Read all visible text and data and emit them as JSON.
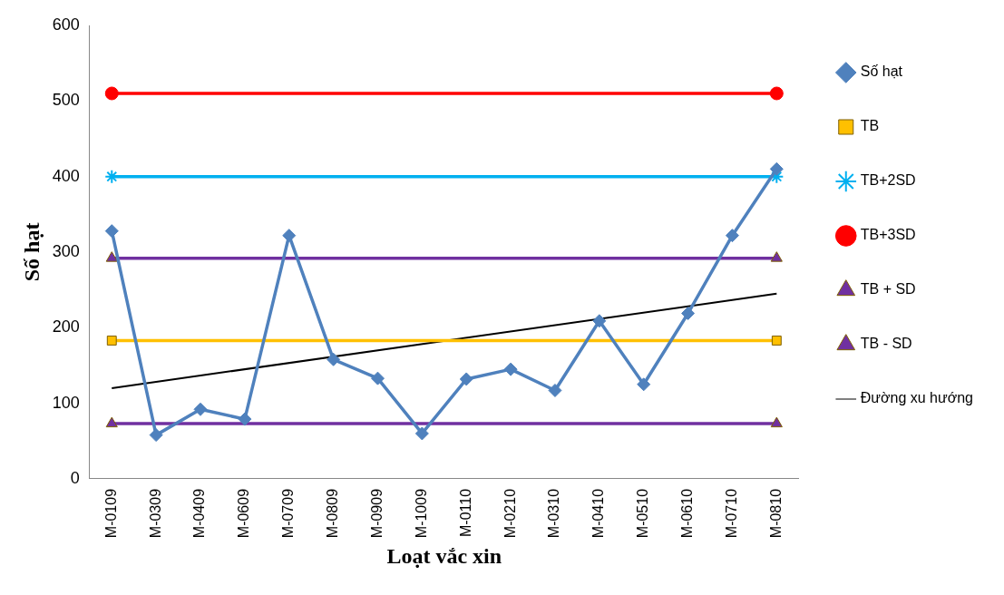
{
  "chart_data": {
    "type": "line",
    "xlabel": "Loạt vắc xin",
    "ylabel": "Số hạt",
    "categories": [
      "M-0109",
      "M-0309",
      "M-0409",
      "M-0609",
      "M-0709",
      "M-0809",
      "M-0909",
      "M-1009",
      "M-0110",
      "M-0210",
      "M-0310",
      "M-0410",
      "M-0510",
      "M-0610",
      "M-0710",
      "M-0810"
    ],
    "ylim": [
      0,
      600
    ],
    "yticks": [
      0,
      100,
      200,
      300,
      400,
      500,
      600
    ],
    "grid": false,
    "legend": "right",
    "series": [
      {
        "name": "Số hạt",
        "color": "#4f81bd",
        "marker": "diamond",
        "values": [
          328,
          58,
          92,
          79,
          322,
          158,
          133,
          60,
          132,
          145,
          117,
          209,
          125,
          219,
          322,
          410
        ]
      },
      {
        "name": "TB",
        "color": "#ffc000",
        "marker": "square",
        "x": [
          "M-0109",
          "M-0810"
        ],
        "values": [
          183,
          183
        ]
      },
      {
        "name": "TB+2SD",
        "color": "#00b0f0",
        "marker": "cross",
        "x": [
          "M-0109",
          "M-0810"
        ],
        "values": [
          400,
          400
        ]
      },
      {
        "name": "TB+3SD",
        "color": "#ff0000",
        "marker": "circle",
        "x": [
          "M-0109",
          "M-0810"
        ],
        "values": [
          510,
          510
        ]
      },
      {
        "name": "TB + SD",
        "color": "#7030a0",
        "marker": "triangle",
        "x": [
          "M-0109",
          "M-0810"
        ],
        "values": [
          292,
          292
        ]
      },
      {
        "name": "TB - SD",
        "color": "#7030a0",
        "marker": "triangle",
        "x": [
          "M-0109",
          "M-0810"
        ],
        "values": [
          73,
          73
        ]
      },
      {
        "name": "Đường xu hướng",
        "color": "#000000",
        "marker": "none",
        "x": [
          "M-0109",
          "M-0810"
        ],
        "values": [
          120,
          245
        ]
      }
    ]
  }
}
